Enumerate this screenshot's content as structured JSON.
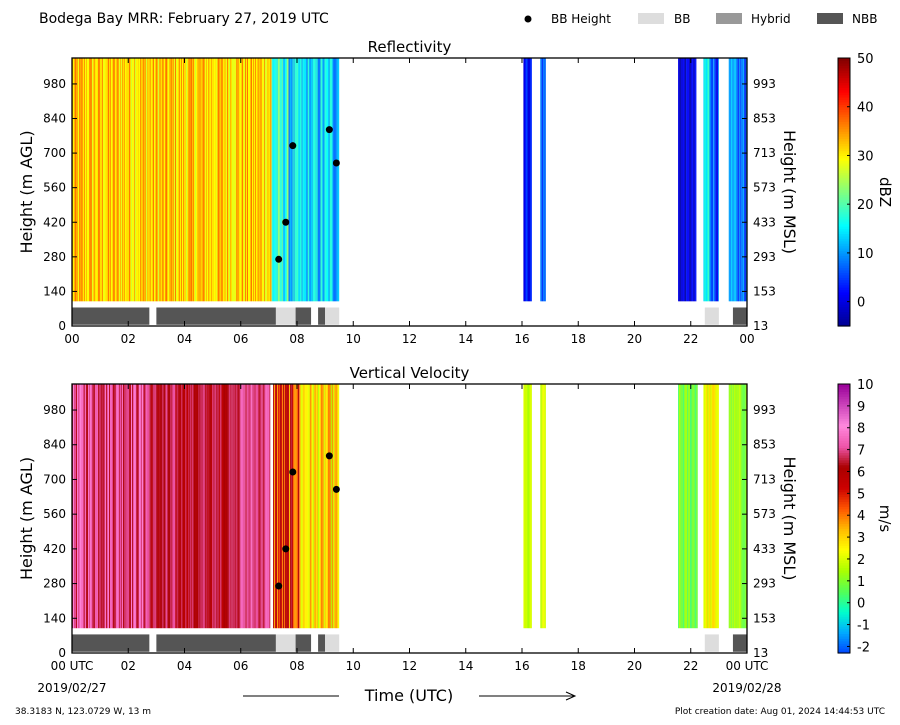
{
  "header": {
    "title": "Bodega Bay MRR:  February 27, 2019 UTC",
    "legend": [
      {
        "label": "BB Height",
        "kind": "dot",
        "color": "#000000"
      },
      {
        "label": "BB",
        "kind": "patch",
        "color": "#dddddd"
      },
      {
        "label": "Hybrid",
        "kind": "patch",
        "color": "#999999"
      },
      {
        "label": "NBB",
        "kind": "patch",
        "color": "#555555"
      }
    ]
  },
  "footer": {
    "location": "38.3183 N, 123.0729 W, 13 m",
    "created": "Plot creation date: Aug 01, 2024 14:44:53 UTC",
    "xlabel": "Time (UTC)",
    "start_date": "2019/02/27",
    "end_date": "2019/02/28"
  },
  "chart_data": [
    {
      "type": "heatmap",
      "title": "Reflectivity",
      "ylabel": "Height (m AGL)",
      "ylabel_right": "Height (m MSL)",
      "xlim": [
        0,
        24
      ],
      "ylim": [
        0,
        1085
      ],
      "xticks": [
        "00",
        "02",
        "04",
        "06",
        "08",
        "10",
        "12",
        "14",
        "16",
        "18",
        "20",
        "22",
        "00"
      ],
      "yticks_left": [
        0,
        140,
        280,
        420,
        560,
        700,
        840,
        980
      ],
      "yticks_right": [
        13,
        153,
        293,
        433,
        573,
        713,
        853,
        993
      ],
      "colorbar": {
        "label": "dBZ",
        "min": -5,
        "max": 50,
        "ticks": [
          0,
          10,
          20,
          30,
          40,
          50
        ],
        "colors": [
          "#00008f",
          "#0000ff",
          "#0080ff",
          "#00ffff",
          "#80ff80",
          "#ffff00",
          "#ff8000",
          "#ff0000",
          "#800000"
        ]
      },
      "data_bottom_m": 100,
      "data_top_m": 1085,
      "segments": [
        {
          "start": 0.0,
          "end": 7.1,
          "low": 27,
          "high": 37
        },
        {
          "start": 7.1,
          "end": 7.7,
          "low": 10,
          "high": 24
        },
        {
          "start": 7.7,
          "end": 9.5,
          "low": 6,
          "high": 20
        },
        {
          "start": 16.05,
          "end": 16.35,
          "low": -1,
          "high": 7
        },
        {
          "start": 16.65,
          "end": 16.85,
          "low": 2,
          "high": 12
        },
        {
          "start": 21.55,
          "end": 22.2,
          "low": -4,
          "high": 3
        },
        {
          "start": 22.45,
          "end": 22.8,
          "low": 3,
          "high": 25
        },
        {
          "start": 22.8,
          "end": 23.0,
          "low": 0,
          "high": 12
        },
        {
          "start": 23.35,
          "end": 24.0,
          "low": 0,
          "high": 14
        }
      ],
      "bb_heights": [
        {
          "time": 7.35,
          "height": 270
        },
        {
          "time": 7.6,
          "height": 420
        },
        {
          "time": 7.85,
          "height": 730
        },
        {
          "time": 9.15,
          "height": 795
        },
        {
          "time": 9.4,
          "height": 660
        }
      ],
      "bb_type_bars": [
        {
          "start": 0.0,
          "end": 2.75,
          "type": "NBB"
        },
        {
          "start": 3.0,
          "end": 7.25,
          "type": "NBB"
        },
        {
          "start": 7.25,
          "end": 7.95,
          "type": "BB"
        },
        {
          "start": 7.95,
          "end": 8.5,
          "type": "NBB"
        },
        {
          "start": 8.75,
          "end": 9.0,
          "type": "NBB"
        },
        {
          "start": 9.0,
          "end": 9.5,
          "type": "BB"
        },
        {
          "start": 22.5,
          "end": 23.0,
          "type": "BB"
        },
        {
          "start": 23.5,
          "end": 24.0,
          "type": "NBB"
        }
      ]
    },
    {
      "type": "heatmap",
      "title": "Vertical Velocity",
      "ylabel": "Height (m AGL)",
      "ylabel_right": "Height (m MSL)",
      "xlim": [
        0,
        24
      ],
      "ylim": [
        0,
        1085
      ],
      "xticks": [
        "00 UTC",
        "02",
        "04",
        "06",
        "08",
        "10",
        "12",
        "14",
        "16",
        "18",
        "20",
        "22",
        "00 UTC"
      ],
      "yticks_left": [
        0,
        140,
        280,
        420,
        560,
        700,
        840,
        980
      ],
      "yticks_right": [
        13,
        153,
        293,
        433,
        573,
        713,
        853,
        993
      ],
      "colorbar": {
        "label": "m/s",
        "min": -2.3,
        "max": 10,
        "ticks": [
          -2,
          -1,
          0,
          1,
          2,
          3,
          4,
          5,
          6,
          7,
          8,
          9,
          10
        ],
        "colors": [
          "#0044ff",
          "#00aaff",
          "#00ffcc",
          "#55ff55",
          "#aaff00",
          "#ffff00",
          "#ffbb00",
          "#ff5500",
          "#cc0000",
          "#aa0000",
          "#ee55aa",
          "#ff88dd",
          "#cc44bb",
          "#990099"
        ]
      },
      "data_bottom_m": 100,
      "data_top_m": 1085,
      "segments": [
        {
          "start": 0.0,
          "end": 2.75,
          "low": 6.3,
          "high": 8.0
        },
        {
          "start": 2.75,
          "end": 5.6,
          "low": 5.6,
          "high": 7.2
        },
        {
          "start": 5.6,
          "end": 7.05,
          "low": 6.2,
          "high": 7.9
        },
        {
          "start": 7.15,
          "end": 8.1,
          "low": 3.2,
          "high": 6.5
        },
        {
          "start": 8.1,
          "end": 9.5,
          "low": 1.5,
          "high": 4.0
        },
        {
          "start": 16.05,
          "end": 16.35,
          "low": 1.2,
          "high": 2.2
        },
        {
          "start": 16.65,
          "end": 16.85,
          "low": 1.3,
          "high": 2.4
        },
        {
          "start": 21.55,
          "end": 22.25,
          "low": 0.2,
          "high": 1.5
        },
        {
          "start": 22.45,
          "end": 23.0,
          "low": 1.6,
          "high": 3.2
        },
        {
          "start": 23.35,
          "end": 24.0,
          "low": 0.6,
          "high": 1.8
        }
      ],
      "bb_heights": [
        {
          "time": 7.35,
          "height": 270
        },
        {
          "time": 7.6,
          "height": 420
        },
        {
          "time": 7.85,
          "height": 730
        },
        {
          "time": 9.15,
          "height": 795
        },
        {
          "time": 9.4,
          "height": 660
        }
      ],
      "bb_type_bars": [
        {
          "start": 0.0,
          "end": 2.75,
          "type": "NBB"
        },
        {
          "start": 3.0,
          "end": 7.25,
          "type": "NBB"
        },
        {
          "start": 7.25,
          "end": 7.95,
          "type": "BB"
        },
        {
          "start": 7.95,
          "end": 8.5,
          "type": "NBB"
        },
        {
          "start": 8.75,
          "end": 9.0,
          "type": "NBB"
        },
        {
          "start": 9.0,
          "end": 9.5,
          "type": "BB"
        },
        {
          "start": 22.5,
          "end": 23.0,
          "type": "BB"
        },
        {
          "start": 23.5,
          "end": 24.0,
          "type": "NBB"
        }
      ]
    }
  ]
}
